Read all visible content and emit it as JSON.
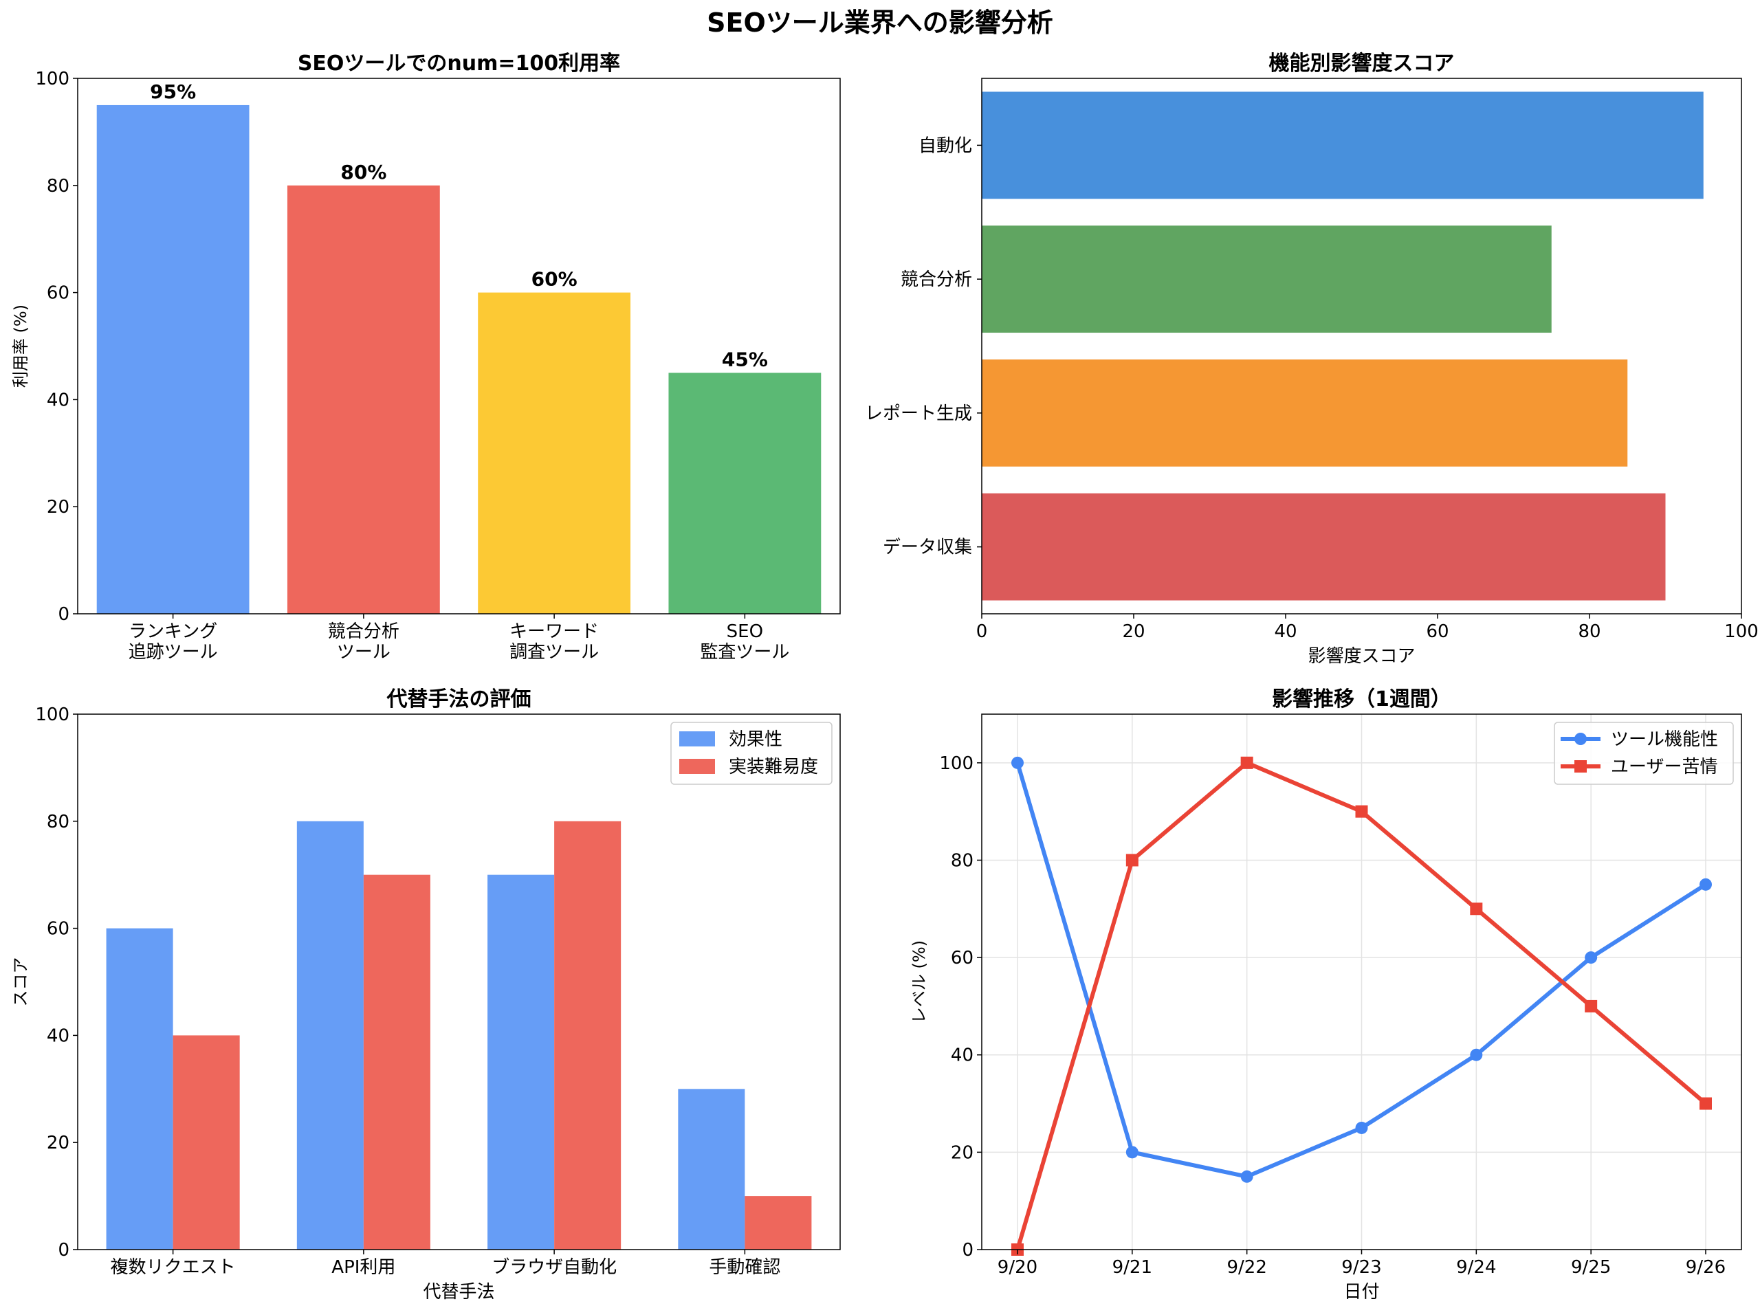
{
  "figure": {
    "title": "SEOツール業界への影響分析"
  },
  "chart_data": [
    {
      "type": "bar",
      "title": "SEOツールでのnum=100利用率",
      "ylabel": "利用率 (%)",
      "xlabel": "",
      "categories": [
        [
          "ランキング",
          "追跡ツール"
        ],
        [
          "競合分析",
          "ツール"
        ],
        [
          "キーワード",
          "調査ツール"
        ],
        [
          "SEO",
          "監査ツール"
        ]
      ],
      "values": [
        95,
        80,
        60,
        45
      ],
      "value_labels": [
        "95%",
        "80%",
        "60%",
        "45%"
      ],
      "colors": [
        "#669df6",
        "#ee675c",
        "#fcc934",
        "#5bb974"
      ],
      "ylim": [
        0,
        100
      ],
      "yticks": [
        "0",
        "20",
        "40",
        "60",
        "80",
        "100"
      ],
      "grid": false
    },
    {
      "type": "bar",
      "orientation": "horizontal",
      "title": "機能別影響度スコア",
      "xlabel": "影響度スコア",
      "ylabel": "",
      "categories": [
        "データ収集",
        "レポート生成",
        "競合分析",
        "自動化"
      ],
      "values": [
        90,
        85,
        75,
        95
      ],
      "colors": [
        "#db5a5a",
        "#f59733",
        "#60a561",
        "#4890dc"
      ],
      "xlim": [
        0,
        100
      ],
      "xticks": [
        "0",
        "20",
        "40",
        "60",
        "80",
        "100"
      ],
      "grid": false
    },
    {
      "type": "bar",
      "title": "代替手法の評価",
      "xlabel": "代替手法",
      "ylabel": "スコア",
      "categories": [
        "複数リクエスト",
        "API利用",
        "ブラウザ自動化",
        "手動確認"
      ],
      "series": [
        {
          "name": "効果性",
          "values": [
            60,
            80,
            70,
            30
          ],
          "color": "#669df6"
        },
        {
          "name": "実装難易度",
          "values": [
            40,
            70,
            80,
            10
          ],
          "color": "#ee675c"
        }
      ],
      "ylim": [
        0,
        100
      ],
      "yticks": [
        "0",
        "20",
        "40",
        "60",
        "80",
        "100"
      ],
      "legend": "top-right",
      "grid": false
    },
    {
      "type": "line",
      "title": "影響推移（1週間）",
      "xlabel": "日付",
      "ylabel": "レベル (%)",
      "x": [
        "9/20",
        "9/21",
        "9/22",
        "9/23",
        "9/24",
        "9/25",
        "9/26"
      ],
      "series": [
        {
          "name": "ツール機能性",
          "values": [
            100,
            20,
            15,
            25,
            40,
            60,
            75
          ],
          "color": "#4285f4",
          "marker": "circle"
        },
        {
          "name": "ユーザー苦情",
          "values": [
            0,
            80,
            100,
            90,
            70,
            50,
            30
          ],
          "color": "#ea4335",
          "marker": "square"
        }
      ],
      "ylim": [
        0,
        110
      ],
      "yticks": [
        "0",
        "20",
        "40",
        "60",
        "80",
        "100"
      ],
      "legend": "top-right",
      "grid": true
    }
  ]
}
